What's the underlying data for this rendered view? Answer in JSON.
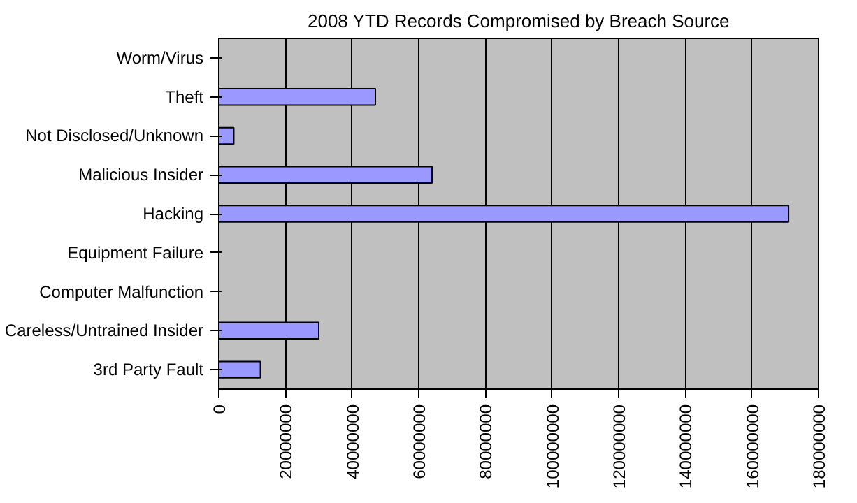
{
  "chart_data": {
    "type": "bar",
    "orientation": "horizontal",
    "title": "2008 YTD Records Compromised by Breach Source",
    "categories": [
      "Worm/Virus",
      "Theft",
      "Not Disclosed/Unknown",
      "Malicious Insider",
      "Hacking",
      "Equipment Failure",
      "Computer Malfunction",
      "Careless/Untrained Insider",
      "3rd Party Fault"
    ],
    "values": [
      0,
      47000000,
      4500000,
      64000000,
      171000000,
      0,
      0,
      30000000,
      12500000
    ],
    "color": "#9999ff",
    "xlim": [
      0,
      180000000
    ],
    "xticks": [
      0,
      20000000,
      40000000,
      60000000,
      80000000,
      100000000,
      120000000,
      140000000,
      160000000,
      180000000
    ],
    "grid": "x"
  }
}
